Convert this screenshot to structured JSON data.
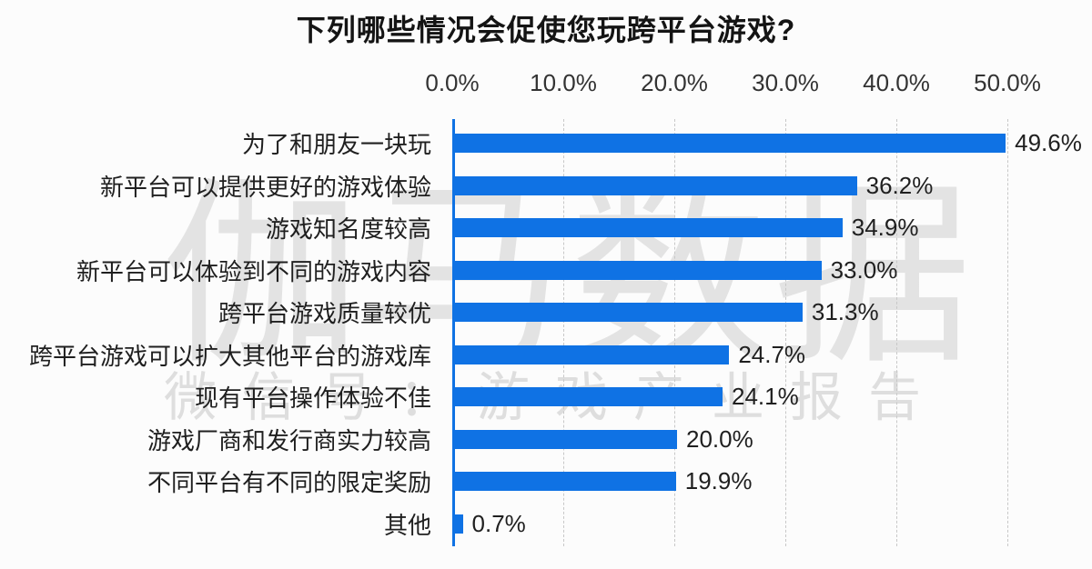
{
  "watermark": {
    "line1": "伽马数据",
    "line2": "微信号：游戏产业报告"
  },
  "chart_data": {
    "type": "bar",
    "orientation": "horizontal",
    "title": "下列哪些情况会促使您玩跨平台游戏?",
    "categories": [
      "为了和朋友一块玩",
      "新平台可以提供更好的游戏体验",
      "游戏知名度较高",
      "新平台可以体验到不同的游戏内容",
      "跨平台游戏质量较优",
      "跨平台游戏可以扩大其他平台的游戏库",
      "现有平台操作体验不佳",
      "游戏厂商和发行商实力较高",
      "不同平台有不同的限定奖励",
      "其他"
    ],
    "values": [
      49.6,
      36.2,
      34.9,
      33.0,
      31.3,
      24.7,
      24.1,
      20.0,
      19.9,
      0.7
    ],
    "value_labels": [
      "49.6%",
      "36.2%",
      "34.9%",
      "33.0%",
      "31.3%",
      "24.7%",
      "24.1%",
      "20.0%",
      "19.9%",
      "0.7%"
    ],
    "x_ticks": [
      "0.0%",
      "10.0%",
      "20.0%",
      "30.0%",
      "40.0%",
      "50.0%"
    ],
    "x_tick_values": [
      0,
      10,
      20,
      30,
      40,
      50
    ],
    "xlim": [
      0,
      50
    ],
    "grid": "vertical-dashed",
    "legend": "none",
    "bar_color": "#0f72e4",
    "axis_line_color": "#0f72e4",
    "gridline_color": "#c8c8c8",
    "label_color": "#1f1f1f",
    "tick_label_color": "#333333",
    "watermark_color": "#c3c3c3"
  }
}
